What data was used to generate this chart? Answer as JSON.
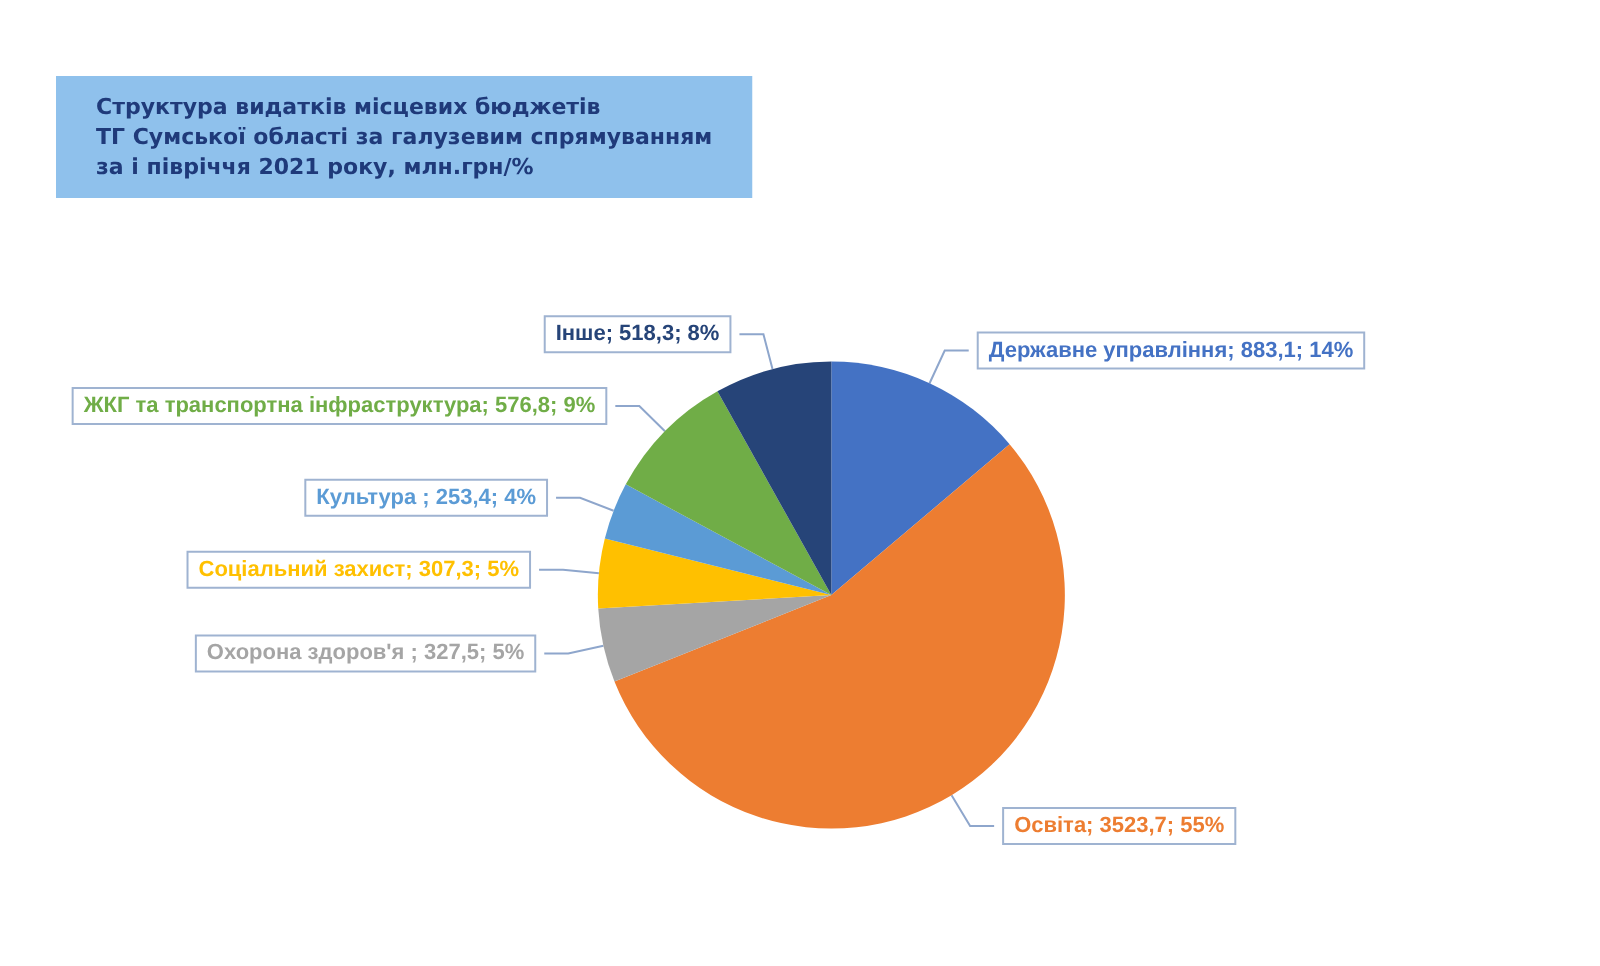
{
  "chart_data": {
    "type": "pie",
    "title": "Структура видатків місцевих бюджетів\nТГ Сумської області за галузевим спрямуванням\nза і півріччя 2021 року, млн.грн/%",
    "categories": [
      "Державне управління",
      "Освіта",
      "Охорона здоров'я ",
      "Соціальний захист",
      "Культура ",
      "ЖКГ та транспортна інфраструктура",
      "Інше"
    ],
    "values": [
      883.1,
      3523.7,
      327.5,
      307.3,
      253.4,
      576.8,
      518.3
    ],
    "value_labels": [
      "883,1; 14%",
      "3523,7; 55%",
      "327,5; 5%",
      "307,3; 5%",
      "253,4; 4%",
      "576,8; 9%",
      "518,3; 8%"
    ],
    "colors": [
      "#4472c4",
      "#ed7d31",
      "#a5a5a5",
      "#ffc000",
      "#5b9bd5",
      "#70ad47",
      "#264478"
    ],
    "legend": false
  }
}
